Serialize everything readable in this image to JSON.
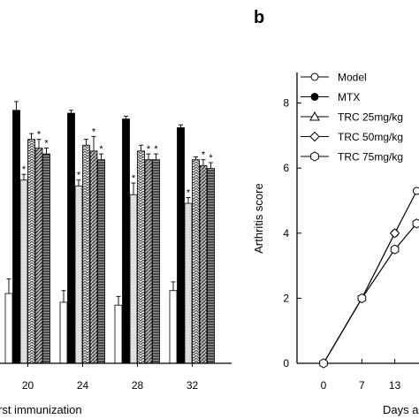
{
  "chart_data": [
    {
      "type": "bar",
      "panel": "",
      "xlabel": "rst immunization",
      "categories": [
        "20",
        "24",
        "28",
        "32"
      ],
      "ylim": [
        0,
        10
      ],
      "series": [
        {
          "color": "#ffffff",
          "pattern": "none",
          "values": [
            2.4,
            2.1,
            2.0,
            2.5
          ]
        },
        {
          "color": "#000000",
          "pattern": "solid",
          "values": [
            8.7,
            8.6,
            8.4,
            8.1
          ]
        },
        {
          "color": "#dcdcdc",
          "pattern": "light-gray",
          "values": [
            6.3,
            6.1,
            5.8,
            5.5
          ]
        },
        {
          "color": "#8c8c8c",
          "pattern": "chevron",
          "values": [
            7.7,
            7.5,
            7.3,
            7.0
          ]
        },
        {
          "color": "#6e6e6e",
          "pattern": "diagonal",
          "values": [
            7.4,
            7.3,
            7.0,
            6.8
          ]
        },
        {
          "color": "#4a4a4a",
          "pattern": "horizontal",
          "values": [
            7.2,
            7.0,
            7.0,
            6.7
          ]
        }
      ],
      "error_bars": [
        [
          0.5,
          0.4,
          0.3,
          0.3
        ],
        [
          0.3,
          0.1,
          0.1,
          0.1
        ],
        [
          0.2,
          0.2,
          0.4,
          0.2
        ],
        [
          0.2,
          0.2,
          0.2,
          0.1
        ],
        [
          0.3,
          0.5,
          0.2,
          0.2
        ],
        [
          0.2,
          0.2,
          0.2,
          0.2
        ]
      ],
      "significance_marks": [
        [
          "",
          "",
          "",
          ""
        ],
        [
          "",
          "",
          "",
          ""
        ],
        [
          "*",
          "*",
          "*",
          "*"
        ],
        [
          "",
          "",
          "",
          ""
        ],
        [
          "*",
          "*",
          "*",
          "*"
        ],
        [
          "*",
          "*",
          "*",
          "*"
        ]
      ]
    },
    {
      "type": "line",
      "panel": "b",
      "ylabel": "Arthritis score",
      "xlabel": "Days a",
      "x_ticks": [
        "0",
        "7",
        "13"
      ],
      "x_tick_values": [
        0,
        7,
        13
      ],
      "y_ticks": [
        "0",
        "2",
        "4",
        "6",
        "8"
      ],
      "ylim": [
        0,
        8.5
      ],
      "xlim": [
        -3,
        17
      ],
      "legend_position": "top-left",
      "series": [
        {
          "name": "Model",
          "marker": "circle-open",
          "x": [
            0,
            7,
            13,
            17
          ],
          "y": [
            0,
            2,
            4,
            5.3
          ]
        },
        {
          "name": "MTX",
          "marker": "circle-filled",
          "x": [],
          "y": []
        },
        {
          "name": "TRC 25mg/kg",
          "marker": "triangle-open",
          "x": [],
          "y": []
        },
        {
          "name": "TRC 50mg/kg",
          "marker": "diamond-open",
          "x": [
            13
          ],
          "y": [
            4
          ]
        },
        {
          "name": "TRC 75mg/kg",
          "marker": "hexagon-open",
          "x": [
            0,
            7,
            13,
            17
          ],
          "y": [
            0,
            2,
            3.5,
            4.3
          ]
        }
      ]
    }
  ]
}
